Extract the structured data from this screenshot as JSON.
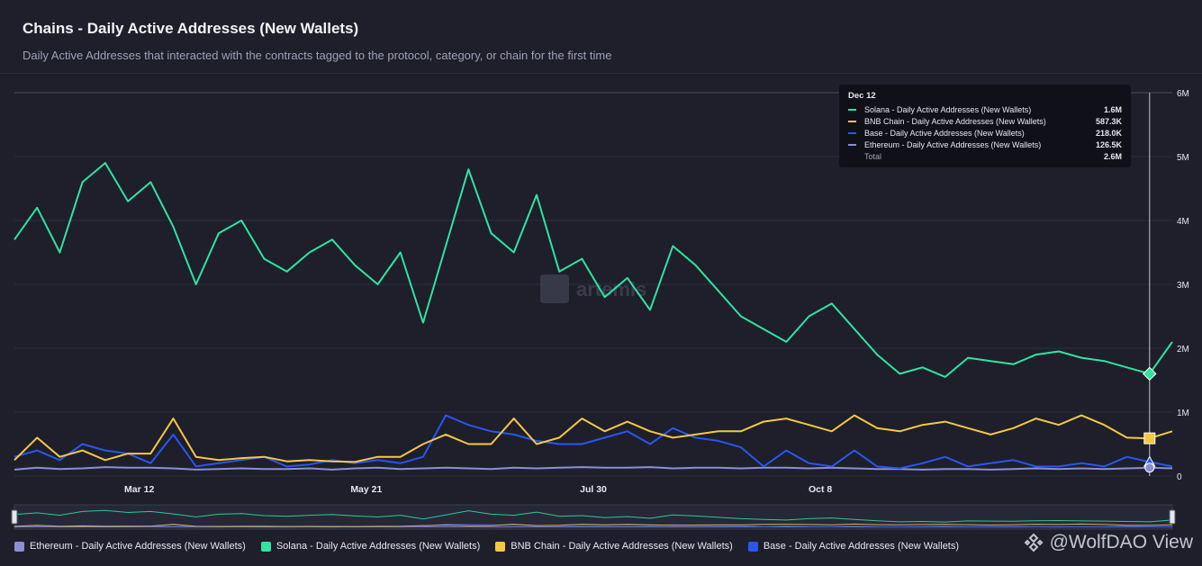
{
  "header": {
    "title": "Chains - Daily Active Addresses (New Wallets)",
    "subtitle": "Daily Active Addresses that interacted with the contracts tagged to the protocol, category, or chain for the first time"
  },
  "tooltip": {
    "date": "Dec 12",
    "rows": [
      {
        "name": "Solana - Daily Active Addresses (New Wallets)",
        "value": "1.6M",
        "color": "#2fe4a0"
      },
      {
        "name": "BNB Chain - Daily Active Addresses (New Wallets)",
        "value": "587.3K",
        "color": "#f5c842"
      },
      {
        "name": "Base - Daily Active Addresses (New Wallets)",
        "value": "218.0K",
        "color": "#2b55f0"
      },
      {
        "name": "Ethereum - Daily Active Addresses (New Wallets)",
        "value": "126.5K",
        "color": "#8a8fd4"
      }
    ],
    "total_label": "Total",
    "total_value": "2.6M"
  },
  "legend": [
    {
      "label": "Ethereum - Daily Active Addresses (New Wallets)",
      "color": "#8a8fd4"
    },
    {
      "label": "Solana - Daily Active Addresses (New Wallets)",
      "color": "#2fe4a0"
    },
    {
      "label": "BNB Chain - Daily Active Addresses (New Wallets)",
      "color": "#f5c842"
    },
    {
      "label": "Base - Daily Active Addresses (New Wallets)",
      "color": "#2b55f0"
    }
  ],
  "watermark": "@WolfDAO View",
  "logo_text": "artemis",
  "chart_data": {
    "type": "line",
    "title": "Chains - Daily Active Addresses (New Wallets)",
    "x_tick_labels": [
      "Mar 12",
      "May 21",
      "Jul 30",
      "Oct 8"
    ],
    "y_tick_labels": [
      "0",
      "1M",
      "2M",
      "3M",
      "4M",
      "5M",
      "6M"
    ],
    "ylim": [
      0,
      6000000
    ],
    "x_unit": "week",
    "x_tick_positions": [
      5.5,
      15.5,
      25.5,
      35.5
    ],
    "series": [
      {
        "name": "Solana - Daily Active Addresses (New Wallets)",
        "color": "#2fe4a0",
        "values": [
          3700000,
          4200000,
          3500000,
          4600000,
          4900000,
          4300000,
          4600000,
          3900000,
          3000000,
          3800000,
          4000000,
          3400000,
          3200000,
          3500000,
          3700000,
          3300000,
          3000000,
          3500000,
          2400000,
          3600000,
          4800000,
          3800000,
          3500000,
          4400000,
          3200000,
          3400000,
          2800000,
          3100000,
          2600000,
          3600000,
          3300000,
          2900000,
          2500000,
          2300000,
          2100000,
          2500000,
          2700000,
          2300000,
          1900000,
          1600000,
          1700000,
          1550000,
          1850000,
          1800000,
          1750000,
          1900000,
          1950000,
          1850000,
          1800000,
          1700000,
          1600000,
          2100000
        ]
      },
      {
        "name": "BNB Chain - Daily Active Addresses (New Wallets)",
        "color": "#f5c842",
        "values": [
          250000,
          600000,
          300000,
          400000,
          250000,
          350000,
          350000,
          900000,
          300000,
          250000,
          280000,
          300000,
          230000,
          250000,
          230000,
          220000,
          300000,
          300000,
          500000,
          650000,
          500000,
          500000,
          900000,
          500000,
          600000,
          900000,
          700000,
          850000,
          700000,
          600000,
          650000,
          700000,
          700000,
          850000,
          900000,
          800000,
          700000,
          950000,
          750000,
          700000,
          800000,
          850000,
          750000,
          650000,
          750000,
          900000,
          800000,
          950000,
          800000,
          600000,
          590000,
          700000
        ]
      },
      {
        "name": "Base - Daily Active Addresses (New Wallets)",
        "color": "#2b55f0",
        "values": [
          300000,
          400000,
          250000,
          500000,
          400000,
          350000,
          200000,
          650000,
          150000,
          200000,
          250000,
          300000,
          150000,
          180000,
          250000,
          200000,
          250000,
          200000,
          300000,
          950000,
          800000,
          700000,
          650000,
          550000,
          500000,
          500000,
          600000,
          700000,
          500000,
          750000,
          600000,
          550000,
          450000,
          150000,
          400000,
          200000,
          150000,
          400000,
          150000,
          120000,
          200000,
          300000,
          150000,
          200000,
          250000,
          150000,
          150000,
          200000,
          150000,
          300000,
          220000,
          150000
        ]
      },
      {
        "name": "Ethereum - Daily Active Addresses (New Wallets)",
        "color": "#8a8fd4",
        "values": [
          100000,
          130000,
          110000,
          120000,
          140000,
          130000,
          130000,
          120000,
          100000,
          110000,
          120000,
          110000,
          110000,
          120000,
          100000,
          120000,
          130000,
          110000,
          120000,
          130000,
          120000,
          110000,
          130000,
          120000,
          130000,
          140000,
          130000,
          130000,
          140000,
          120000,
          130000,
          130000,
          120000,
          130000,
          130000,
          120000,
          130000,
          120000,
          110000,
          110000,
          100000,
          110000,
          110000,
          100000,
          110000,
          120000,
          110000,
          120000,
          110000,
          120000,
          130000,
          120000
        ]
      }
    ],
    "legend_position": "bottom"
  }
}
